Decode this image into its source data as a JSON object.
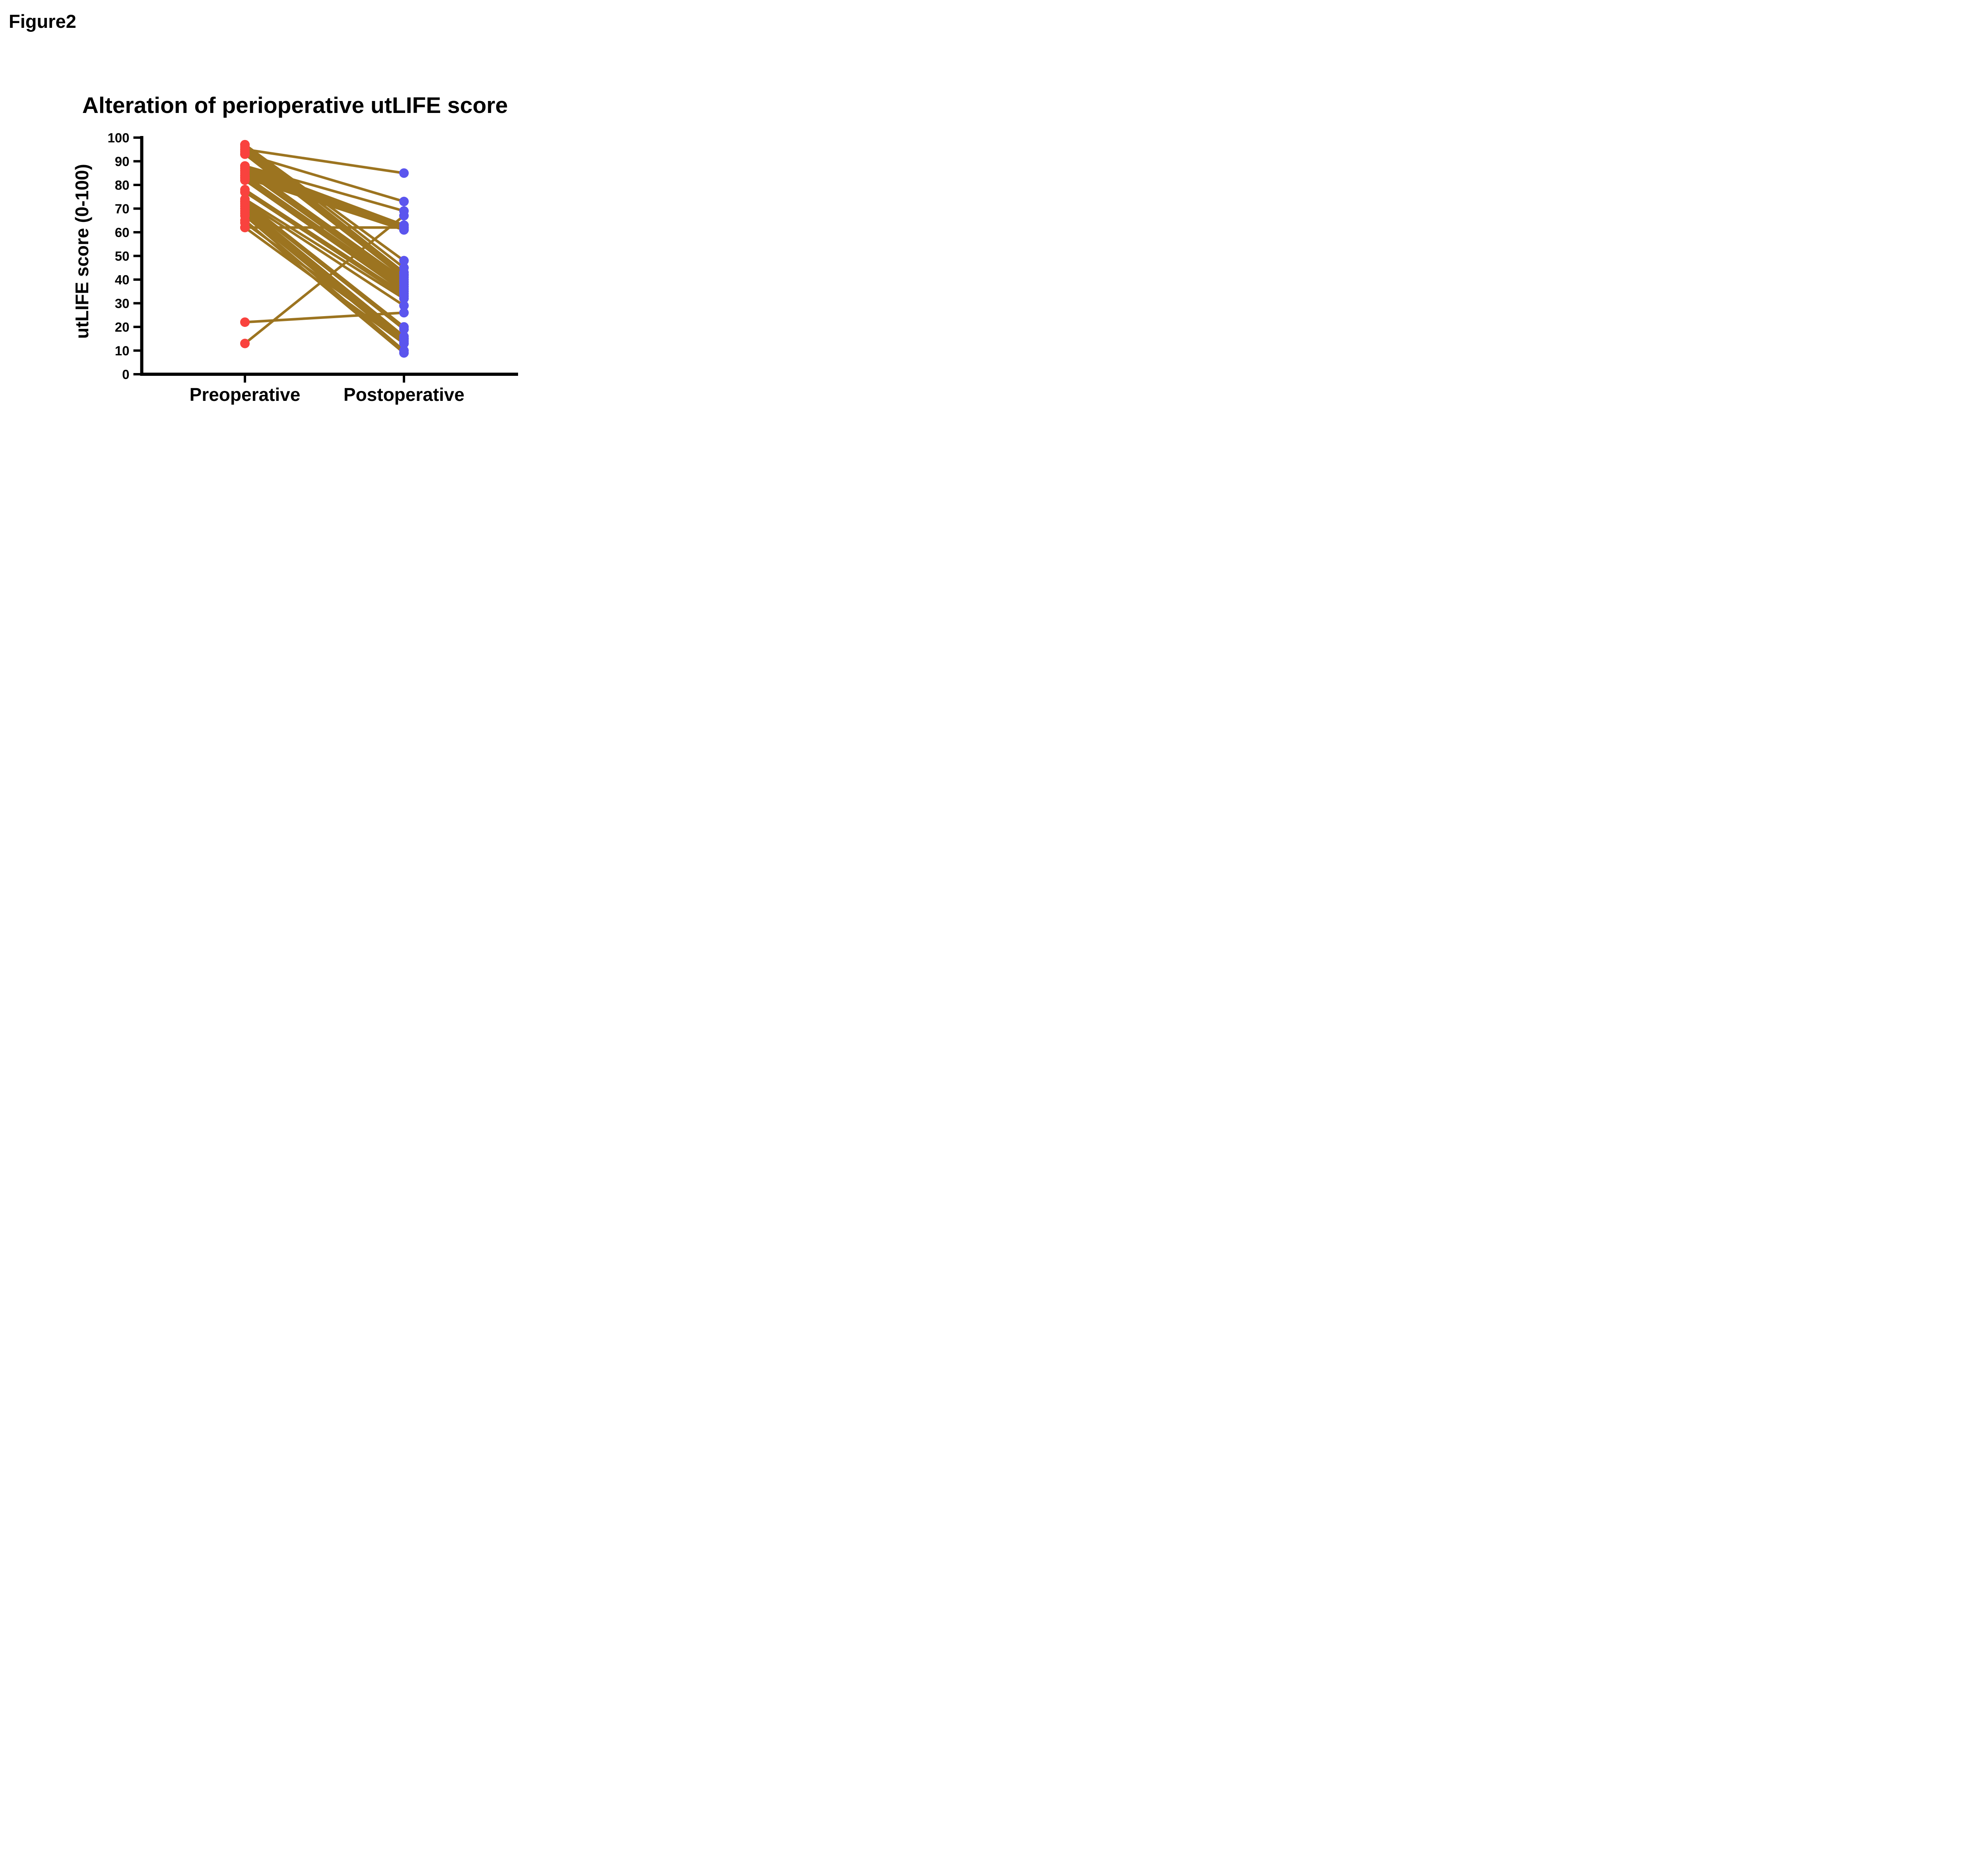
{
  "figure_label": "Figure2",
  "chart_data": {
    "type": "line",
    "subtype": "paired-before-after",
    "title": "Alteration of perioperative utLIFE score",
    "xlabel": "",
    "ylabel": "utLIFE score (0-100)",
    "categories": [
      "Preoperative",
      "Postoperative"
    ],
    "ylim": [
      0,
      100
    ],
    "yticks": [
      0,
      10,
      20,
      30,
      40,
      50,
      60,
      70,
      80,
      90,
      100
    ],
    "grid": false,
    "legend": "none",
    "pairs": [
      {
        "pre": 95,
        "post": 85
      },
      {
        "pre": 93,
        "post": 73
      },
      {
        "pre": 88,
        "post": 69
      },
      {
        "pre": 13,
        "post": 67
      },
      {
        "pre": 88,
        "post": 63
      },
      {
        "pre": 87,
        "post": 63
      },
      {
        "pre": 86,
        "post": 62
      },
      {
        "pre": 85,
        "post": 62
      },
      {
        "pre": 62,
        "post": 62
      },
      {
        "pre": 84,
        "post": 61
      },
      {
        "pre": 83,
        "post": 61
      },
      {
        "pre": 97,
        "post": 48
      },
      {
        "pre": 97,
        "post": 45
      },
      {
        "pre": 96,
        "post": 43
      },
      {
        "pre": 95,
        "post": 42
      },
      {
        "pre": 94,
        "post": 42
      },
      {
        "pre": 93,
        "post": 41
      },
      {
        "pre": 88,
        "post": 40
      },
      {
        "pre": 87,
        "post": 39
      },
      {
        "pre": 86,
        "post": 38
      },
      {
        "pre": 84,
        "post": 37
      },
      {
        "pre": 83,
        "post": 36
      },
      {
        "pre": 82,
        "post": 35
      },
      {
        "pre": 78,
        "post": 34
      },
      {
        "pre": 77,
        "post": 33
      },
      {
        "pre": 74,
        "post": 32
      },
      {
        "pre": 73,
        "post": 29
      },
      {
        "pre": 22,
        "post": 26
      },
      {
        "pre": 73,
        "post": 20
      },
      {
        "pre": 72,
        "post": 19
      },
      {
        "pre": 71,
        "post": 16
      },
      {
        "pre": 70,
        "post": 15
      },
      {
        "pre": 64,
        "post": 15
      },
      {
        "pre": 69,
        "post": 14
      },
      {
        "pre": 68,
        "post": 13
      },
      {
        "pre": 62,
        "post": 13
      },
      {
        "pre": 67,
        "post": 10
      },
      {
        "pre": 65,
        "post": 9
      }
    ],
    "colors": {
      "pre_dot": "#F9423E",
      "post_dot": "#5B55EE",
      "line": "#9C7420",
      "axis": "#000000",
      "text": "#000000",
      "background": "#FFFFFF"
    }
  }
}
